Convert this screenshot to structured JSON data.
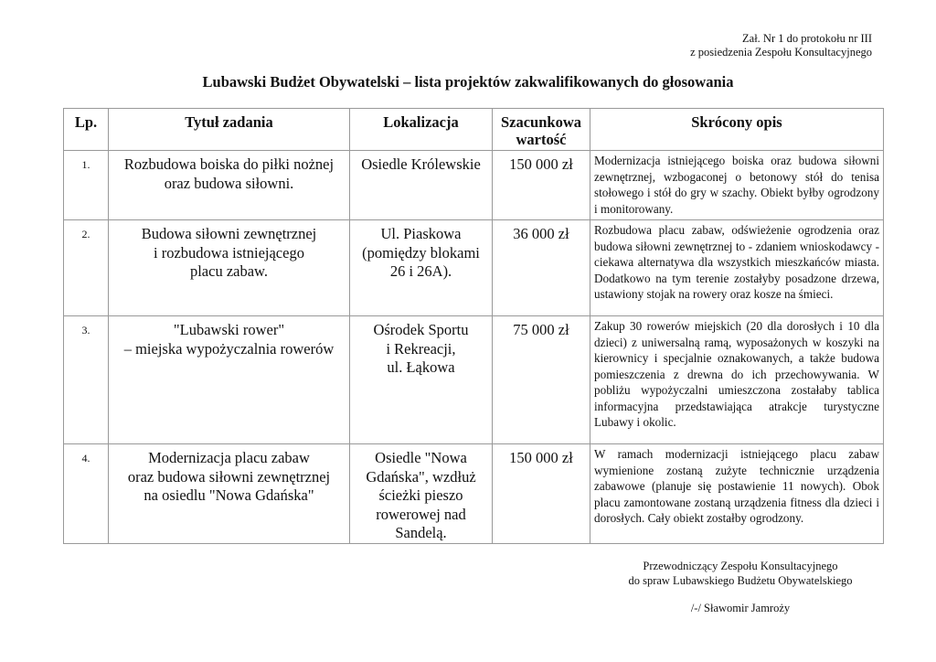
{
  "header_note": [
    "Zał. Nr 1 do protokołu nr III",
    "z posiedzenia Zespołu Konsultacyjnego"
  ],
  "title": "Lubawski Budżet Obywatelski – lista projektów zakwalifikowanych do głosowania",
  "columns": [
    "Lp.",
    "Tytuł zadania",
    "Lokalizacja",
    "Szacunkowa wartość",
    "Skrócony opis"
  ],
  "rows": [
    {
      "lp": "1.",
      "title": [
        "Rozbudowa boiska do piłki nożnej",
        "oraz budowa siłowni."
      ],
      "location": [
        "Osiedle Królewskie"
      ],
      "value": "150 000 zł",
      "description": "Modernizacja istniejącego boiska oraz budowa siłowni zewnętrznej, wzbogaconej o betonowy stół do tenisa stołowego i stół do gry w szachy. Obiekt byłby ogrodzony i monitorowany."
    },
    {
      "lp": "2.",
      "title": [
        "Budowa siłowni zewnętrznej",
        "i rozbudowa istniejącego",
        "placu zabaw."
      ],
      "location": [
        "Ul. Piaskowa",
        "(pomiędzy blokami",
        "26 i 26A)."
      ],
      "value": "36 000 zł",
      "description": "Rozbudowa placu zabaw, odświeżenie ogrodzenia oraz budowa siłowni zewnętrznej to - zdaniem wnioskodawcy - ciekawa alternatywa dla wszystkich mieszkańców miasta. Dodatkowo na tym terenie zostałyby posadzone drzewa, ustawiony stojak na rowery oraz kosze na śmieci."
    },
    {
      "lp": "3.",
      "title": [
        "\"Lubawski rower\"",
        "– miejska wypożyczalnia rowerów"
      ],
      "location": [
        "Ośrodek Sportu",
        "i Rekreacji,",
        "ul. Łąkowa"
      ],
      "value": "75 000 zł",
      "description": "Zakup 30 rowerów miejskich (20 dla dorosłych i 10 dla dzieci) z uniwersalną ramą, wyposażonych w koszyki na kierownicy i specjalnie oznakowanych, a także budowa pomieszczenia z drewna do ich przechowywania. W pobliżu wypożyczalni umieszczona zostałaby tablica informacyjna przedstawiająca atrakcje turystyczne Lubawy i okolic."
    },
    {
      "lp": "4.",
      "title": [
        "Modernizacja placu zabaw",
        "oraz budowa siłowni zewnętrznej",
        "na osiedlu \"Nowa Gdańska\""
      ],
      "location": [
        "Osiedle \"Nowa",
        "Gdańska\", wzdłuż",
        "ścieżki pieszo",
        "rowerowej nad",
        "Sandelą."
      ],
      "value": "150 000 zł",
      "description": "W ramach modernizacji istniejącego placu zabaw wymienione zostaną zużyte technicznie urządzenia zabawowe (planuje się postawienie 11 nowych). Obok placu zamontowane zostaną urządzenia fitness dla dzieci i dorosłych. Cały obiekt zostałby ogrodzony."
    }
  ],
  "signature": [
    "Przewodniczący Zespołu Konsultacyjnego",
    "do spraw Lubawskiego Budżetu Obywatelskiego",
    "/-/ Sławomir Jamroży"
  ]
}
